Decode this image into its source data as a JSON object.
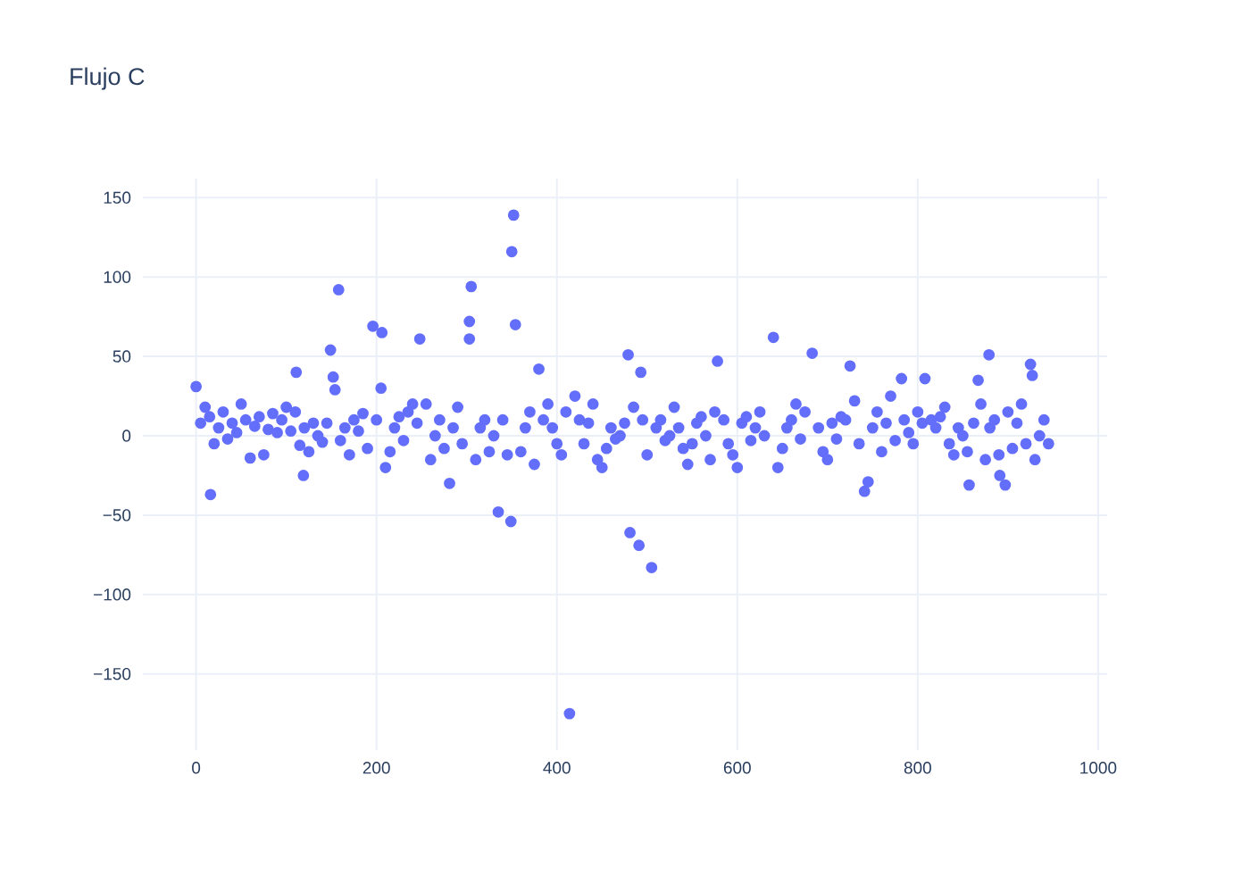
{
  "chart_data": {
    "type": "scatter",
    "title": "Flujo C",
    "x": [
      0,
      16,
      158,
      206,
      196,
      248,
      305,
      303,
      303,
      335,
      349,
      352,
      350,
      354,
      380,
      414,
      481,
      491,
      505,
      479,
      493,
      578,
      640,
      683,
      725,
      741,
      745,
      782,
      808,
      879,
      867,
      891,
      897,
      925,
      927,
      857,
      119,
      111,
      149,
      152,
      154,
      281,
      5,
      10,
      15,
      20,
      25,
      30,
      35,
      40,
      45,
      50,
      55,
      60,
      65,
      70,
      75,
      80,
      85,
      90,
      95,
      100,
      105,
      110,
      115,
      120,
      125,
      130,
      135,
      140,
      145,
      160,
      165,
      170,
      175,
      180,
      185,
      190,
      200,
      205,
      210,
      215,
      220,
      225,
      230,
      235,
      240,
      245,
      255,
      260,
      265,
      270,
      275,
      285,
      290,
      295,
      310,
      315,
      320,
      325,
      330,
      340,
      345,
      360,
      365,
      370,
      375,
      385,
      390,
      395,
      400,
      405,
      410,
      420,
      425,
      430,
      435,
      440,
      445,
      450,
      455,
      460,
      465,
      470,
      475,
      485,
      495,
      500,
      510,
      515,
      520,
      525,
      530,
      535,
      540,
      545,
      550,
      555,
      560,
      565,
      570,
      575,
      585,
      590,
      595,
      600,
      605,
      610,
      615,
      620,
      625,
      630,
      645,
      650,
      655,
      660,
      665,
      670,
      675,
      690,
      695,
      700,
      705,
      710,
      715,
      720,
      730,
      735,
      750,
      755,
      760,
      765,
      770,
      775,
      785,
      790,
      795,
      800,
      805,
      815,
      820,
      825,
      830,
      835,
      840,
      845,
      850,
      855,
      862,
      870,
      875,
      880,
      885,
      890,
      900,
      905,
      910,
      915,
      920,
      930,
      935,
      940,
      945
    ],
    "values": [
      31,
      -37,
      92,
      65,
      69,
      61,
      94,
      72,
      61,
      -48,
      -54,
      139,
      116,
      70,
      42,
      -175,
      -61,
      -69,
      -83,
      51,
      40,
      47,
      62,
      52,
      44,
      -35,
      -29,
      36,
      36,
      51,
      35,
      -25,
      -31,
      45,
      38,
      -31,
      -25,
      40,
      54,
      37,
      29,
      -30,
      8,
      18,
      12,
      -5,
      5,
      15,
      -2,
      8,
      2,
      20,
      10,
      -14,
      6,
      12,
      -12,
      4,
      14,
      2,
      10,
      18,
      3,
      15,
      -6,
      5,
      -10,
      8,
      0,
      -4,
      8,
      -3,
      5,
      -12,
      10,
      3,
      14,
      -8,
      10,
      30,
      -20,
      -10,
      5,
      12,
      -3,
      15,
      20,
      8,
      20,
      -15,
      0,
      10,
      -8,
      5,
      18,
      -5,
      -15,
      5,
      10,
      -10,
      0,
      10,
      -12,
      -10,
      5,
      15,
      -18,
      10,
      20,
      5,
      -5,
      -12,
      15,
      25,
      10,
      -5,
      8,
      20,
      -15,
      -20,
      -8,
      5,
      -2,
      0,
      8,
      18,
      10,
      -12,
      5,
      10,
      -3,
      0,
      18,
      5,
      -8,
      -18,
      -5,
      8,
      12,
      0,
      -15,
      15,
      10,
      -5,
      -12,
      -20,
      8,
      12,
      -3,
      5,
      15,
      0,
      -20,
      -8,
      5,
      10,
      20,
      -2,
      15,
      5,
      -10,
      -15,
      8,
      -2,
      12,
      10,
      22,
      -5,
      5,
      15,
      -10,
      8,
      25,
      -3,
      10,
      2,
      -5,
      15,
      8,
      10,
      5,
      12,
      18,
      -5,
      -12,
      5,
      0,
      -10,
      8,
      20,
      -15,
      5,
      10,
      -12,
      15,
      -8,
      8,
      20,
      -5,
      -15,
      0,
      10,
      -5
    ],
    "color": "#636efa",
    "marker": "circle",
    "xlim": [
      -59,
      1010
    ],
    "ylim": [
      -198,
      162
    ],
    "xticks": [
      0,
      200,
      400,
      600,
      800,
      1000
    ],
    "yticks": [
      {
        "value": -150,
        "label": "−150"
      },
      {
        "value": -100,
        "label": "−100"
      },
      {
        "value": -50,
        "label": "−50"
      },
      0,
      50,
      100,
      150
    ],
    "grid": true
  }
}
